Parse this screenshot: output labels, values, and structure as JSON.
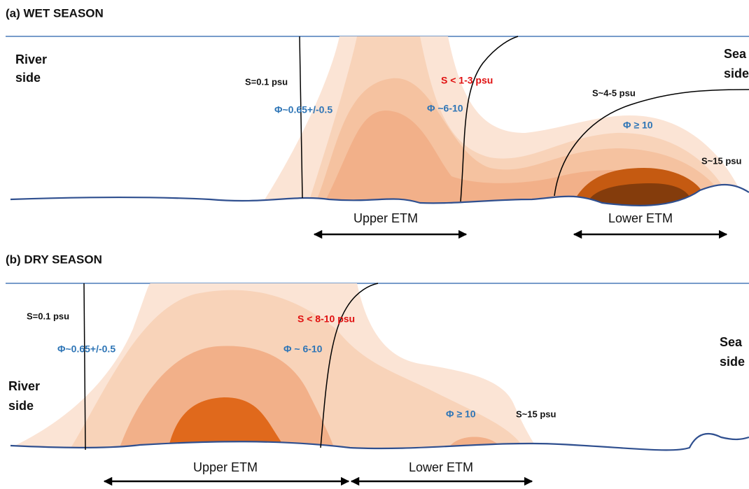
{
  "panels": [
    {
      "title": "(a) WET SEASON",
      "river": [
        "River",
        "side"
      ],
      "sea": [
        "Sea",
        "side"
      ],
      "salinity_river": "S=0.1 psu",
      "phi_river": "Φ~0.65+/-0.5",
      "salinity_front": "S < 1-3 psu",
      "phi_upper": "Φ ~6-10",
      "salinity_mid": "S~4-5 psu",
      "phi_lower": "Φ ≥ 10",
      "salinity_sea": "S~15 psu",
      "upper_etm": "Upper ETM",
      "lower_etm": "Lower ETM"
    },
    {
      "title": "(b) DRY SEASON",
      "river": [
        "River",
        "side"
      ],
      "sea": [
        "Sea",
        "side"
      ],
      "salinity_river": "S=0.1 psu",
      "phi_river": "Φ~0.65+/-0.5",
      "salinity_front": "S < 8-10 psu",
      "phi_upper": "Φ ~ 6-10",
      "phi_lower": "Φ ≥ 10",
      "salinity_sea": "S~15 psu",
      "upper_etm": "Upper ETM",
      "lower_etm": "Lower ETM"
    }
  ]
}
